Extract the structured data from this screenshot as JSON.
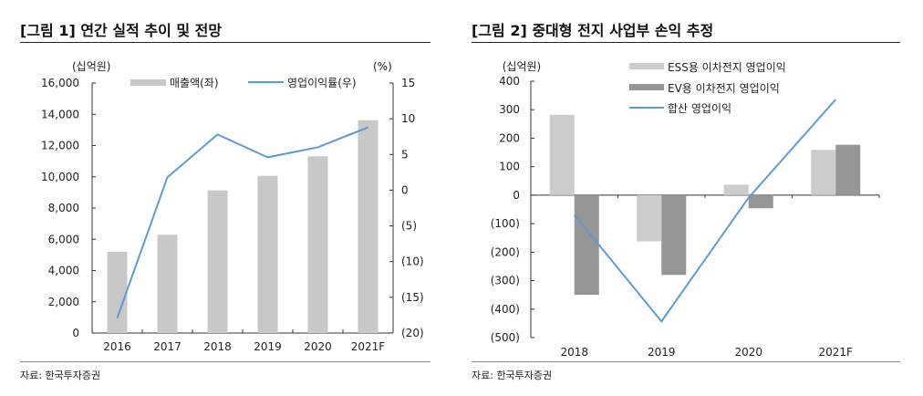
{
  "chart_data": [
    {
      "type": "bar+line",
      "title": "[그림 1] 연간 실적 추이 및 전망",
      "source": "자료: 한국투자증권",
      "categories": [
        "2016",
        "2017",
        "2018",
        "2019",
        "2020",
        "2021F"
      ],
      "left_unit": "(십억원)",
      "right_unit": "(%)",
      "left_ylim": [
        0,
        16000
      ],
      "left_ticks": [
        "0",
        "2,000",
        "4,000",
        "6,000",
        "8,000",
        "10,000",
        "12,000",
        "14,000",
        "16,000"
      ],
      "right_ylim": [
        -20,
        15
      ],
      "right_ticks": [
        "(20)",
        "(15)",
        "(10)",
        "(5)",
        "0",
        "5",
        "10",
        "15"
      ],
      "series": [
        {
          "name": "매출액(좌)",
          "kind": "bar",
          "axis": "left",
          "color": "#c8c8c8",
          "values": [
            5200,
            6290,
            9130,
            10060,
            11310,
            13620
          ]
        },
        {
          "name": "영업이익률(우)",
          "kind": "line",
          "axis": "right",
          "color": "#5b9bd5",
          "values": [
            -17.9,
            1.8,
            7.8,
            4.6,
            6.0,
            8.8
          ]
        }
      ],
      "legend": "top"
    },
    {
      "type": "bar+line",
      "title": "[그림 2] 중대형 전지 사업부 손익 추정",
      "source": "자료: 한국투자증권",
      "categories": [
        "2018",
        "2019",
        "2020",
        "2021F"
      ],
      "left_unit": "(십억원)",
      "ylim": [
        -500,
        400
      ],
      "ticks": [
        "(500)",
        "(400)",
        "(300)",
        "(200)",
        "(100)",
        "0",
        "100",
        "200",
        "300",
        "400"
      ],
      "series": [
        {
          "name": "ESS용 이차전지 영업이익",
          "kind": "bar",
          "color": "#cccccc",
          "values": [
            282,
            -162,
            37,
            159
          ]
        },
        {
          "name": "EV용 이차전지 영업이익",
          "kind": "bar",
          "color": "#969696",
          "values": [
            -350,
            -280,
            -46,
            177
          ]
        },
        {
          "name": "합산 영업이익",
          "kind": "line",
          "color": "#5b9bd5",
          "values": [
            -69,
            -443,
            -9,
            336
          ]
        }
      ],
      "legend": "top-right"
    }
  ]
}
